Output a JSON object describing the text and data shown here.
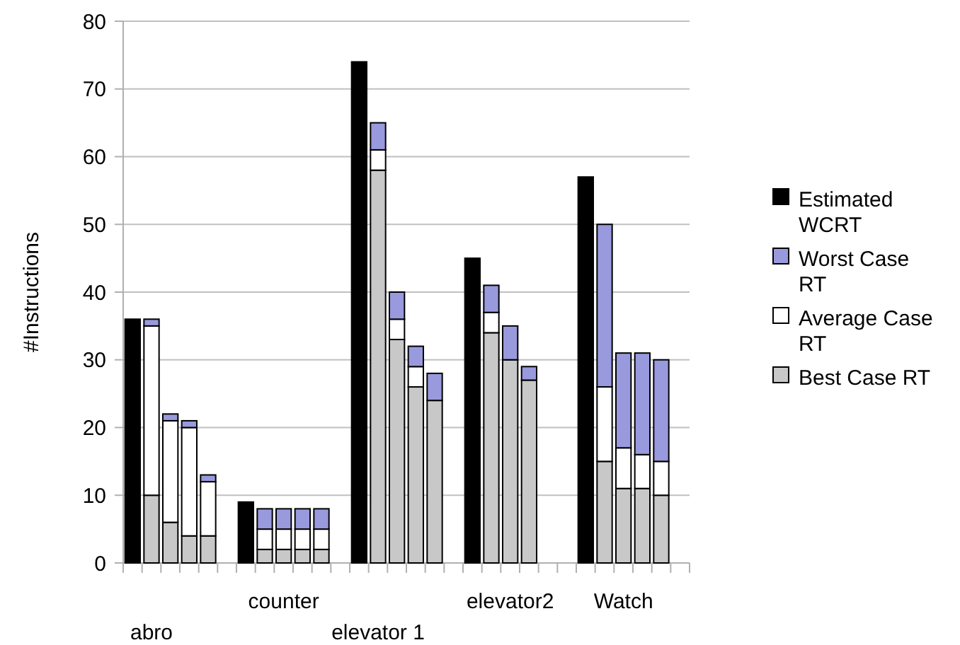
{
  "chart_data": {
    "type": "bar",
    "ylabel": "#Instructions",
    "stacked": true,
    "legend": "right",
    "grid": "y",
    "categories": [
      null,
      "abro",
      null,
      null,
      null,
      null,
      null,
      null,
      "counter",
      null,
      null,
      null,
      null,
      "elevator 1",
      null,
      null,
      null,
      null,
      null,
      null,
      "elevator2",
      null,
      null,
      null,
      null,
      null,
      "Watch",
      null,
      null,
      null
    ],
    "ylim": [
      0,
      80
    ],
    "yticks": [
      0,
      10,
      20,
      30,
      40,
      50,
      60,
      70,
      80
    ],
    "series": [
      {
        "name": "Best Case RT",
        "color": "#c8c8c8",
        "values": [
          null,
          10,
          6,
          4,
          4,
          null,
          null,
          2,
          2,
          2,
          2,
          null,
          null,
          58,
          33,
          26,
          24,
          null,
          null,
          34,
          30,
          27,
          null,
          null,
          null,
          15,
          11,
          11,
          10,
          null
        ]
      },
      {
        "name": "Average Case RT",
        "color": "#ffffff",
        "values": [
          null,
          25,
          15,
          16,
          8,
          null,
          null,
          3,
          3,
          3,
          3,
          null,
          null,
          3,
          3,
          3,
          0,
          null,
          null,
          3,
          0,
          0,
          null,
          null,
          null,
          11,
          6,
          5,
          5,
          null
        ]
      },
      {
        "name": "Worst Case RT",
        "color": "#9999dd",
        "values": [
          null,
          1,
          1,
          1,
          1,
          null,
          null,
          3,
          3,
          3,
          3,
          null,
          null,
          4,
          4,
          3,
          4,
          null,
          null,
          4,
          5,
          2,
          null,
          null,
          null,
          24,
          14,
          15,
          15,
          null
        ]
      },
      {
        "name": "Estimated WCRT",
        "color": "#000000",
        "values": [
          36,
          null,
          null,
          null,
          null,
          null,
          9,
          null,
          null,
          null,
          null,
          null,
          74,
          null,
          null,
          null,
          null,
          null,
          45,
          null,
          null,
          null,
          null,
          null,
          57,
          null,
          null,
          null,
          null,
          null
        ]
      }
    ]
  }
}
